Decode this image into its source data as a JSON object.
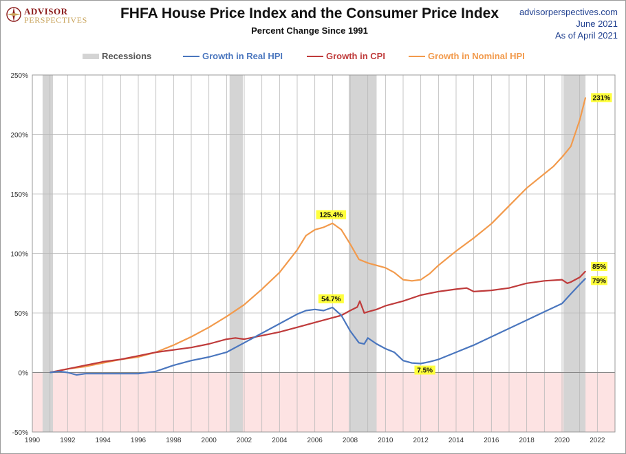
{
  "header": {
    "logo_top": "ADVISOR",
    "logo_bottom": "PERSPECTIVES",
    "title": "FHFA House Price Index and the Consumer Price Index",
    "subtitle": "Percent Change Since 1991",
    "source_site": "advisorperspectives.com",
    "source_date": "June 2021",
    "source_asof": "As of April 2021"
  },
  "legend": [
    {
      "label": "Recessions",
      "color": "#d4d4d4",
      "kind": "band"
    },
    {
      "label": "Growth in Real HPI",
      "color": "#4a76be",
      "kind": "line"
    },
    {
      "label": "Growth in CPI",
      "color": "#bf3b3b",
      "kind": "line"
    },
    {
      "label": "Growth in Nominal HPI",
      "color": "#f29a4c",
      "kind": "line"
    }
  ],
  "chart_data": {
    "type": "line",
    "title": "FHFA House Price Index and the Consumer Price Index",
    "subtitle": "Percent Change Since 1991",
    "xlim": [
      1990,
      2023
    ],
    "ylim": [
      -50,
      250
    ],
    "x_ticks": [
      "1990",
      "1992",
      "1994",
      "1996",
      "1998",
      "2000",
      "2002",
      "2004",
      "2006",
      "2008",
      "2010",
      "2012",
      "2014",
      "2016",
      "2018",
      "2020",
      "2022"
    ],
    "y_ticks": [
      "-50%",
      "0%",
      "50%",
      "100%",
      "150%",
      "200%",
      "250%"
    ],
    "grid": true,
    "negative_region_color": "#fde3e3",
    "recessions": [
      [
        1990.58,
        1991.17
      ],
      [
        2001.17,
        2001.92
      ],
      [
        2007.92,
        2009.5
      ],
      [
        2020.08,
        2021.33
      ]
    ],
    "series": [
      {
        "name": "Growth in Real HPI",
        "color": "#4a76be",
        "x": [
          1991.0,
          1991.5,
          1992.0,
          1992.5,
          1993.0,
          1994.0,
          1995.0,
          1996.0,
          1997.0,
          1998.0,
          1999.0,
          2000.0,
          2001.0,
          2002.0,
          2003.0,
          2004.0,
          2005.0,
          2005.5,
          2006.0,
          2006.5,
          2007.0,
          2007.5,
          2008.0,
          2008.5,
          2008.8,
          2009.0,
          2009.5,
          2010.0,
          2010.5,
          2011.0,
          2011.5,
          2012.0,
          2012.5,
          2013.0,
          2014.0,
          2015.0,
          2016.0,
          2017.0,
          2018.0,
          2019.0,
          2020.0,
          2020.5,
          2021.0,
          2021.33
        ],
        "values": [
          0,
          1,
          0,
          -2,
          -1,
          -1,
          -1,
          -1,
          1,
          6,
          10,
          13,
          17,
          25,
          33,
          41,
          49,
          52,
          53,
          52,
          54.7,
          48,
          35,
          25,
          24,
          29,
          24,
          20,
          17,
          10,
          8,
          7.5,
          9,
          11,
          17,
          23,
          30,
          37,
          44,
          51,
          58,
          66,
          74,
          79
        ]
      },
      {
        "name": "Growth in CPI",
        "color": "#bf3b3b",
        "x": [
          1991.0,
          1992.0,
          1993.0,
          1994.0,
          1995.0,
          1996.0,
          1997.0,
          1998.0,
          1999.0,
          2000.0,
          2001.0,
          2001.5,
          2002.0,
          2003.0,
          2004.0,
          2005.0,
          2006.0,
          2007.0,
          2007.5,
          2008.0,
          2008.4,
          2008.55,
          2008.8,
          2009.0,
          2009.5,
          2010.0,
          2011.0,
          2012.0,
          2013.0,
          2014.0,
          2014.6,
          2015.0,
          2016.0,
          2017.0,
          2018.0,
          2019.0,
          2020.0,
          2020.3,
          2020.5,
          2021.0,
          2021.33
        ],
        "values": [
          0,
          3,
          6,
          9,
          11,
          14,
          17,
          19,
          21,
          24,
          28,
          29,
          28,
          31,
          34,
          38,
          42,
          46,
          48,
          52,
          55,
          60,
          50,
          51,
          53,
          56,
          60,
          65,
          68,
          70,
          71,
          68,
          69,
          71,
          75,
          77,
          78,
          75,
          76,
          80,
          85
        ]
      },
      {
        "name": "Growth in Nominal HPI",
        "color": "#f29a4c",
        "x": [
          1991.0,
          1992.0,
          1993.0,
          1994.0,
          1995.0,
          1996.0,
          1997.0,
          1998.0,
          1999.0,
          2000.0,
          2001.0,
          2002.0,
          2003.0,
          2004.0,
          2005.0,
          2005.5,
          2006.0,
          2006.5,
          2007.0,
          2007.5,
          2008.0,
          2008.5,
          2009.0,
          2009.5,
          2010.0,
          2010.5,
          2011.0,
          2011.5,
          2012.0,
          2012.5,
          2013.0,
          2014.0,
          2015.0,
          2016.0,
          2017.0,
          2018.0,
          2019.0,
          2019.5,
          2020.0,
          2020.5,
          2021.0,
          2021.33
        ],
        "values": [
          0,
          3,
          5,
          8,
          11,
          13,
          17,
          23,
          30,
          38,
          47,
          57,
          70,
          84,
          103,
          115,
          120,
          122,
          125.4,
          120,
          108,
          95,
          92,
          90,
          88,
          84,
          78,
          77,
          78,
          83,
          90,
          102,
          113,
          125,
          140,
          155,
          167,
          173,
          181,
          190,
          212,
          231
        ]
      }
    ],
    "annotations": [
      {
        "text": "231%",
        "x": 2021.33,
        "y": 231,
        "align": "right"
      },
      {
        "text": "125.4%",
        "x": 2007.0,
        "y": 125.4,
        "align": "above"
      },
      {
        "text": "54.7%",
        "x": 2007.0,
        "y": 54.7,
        "align": "above"
      },
      {
        "text": "7.5%",
        "x": 2012.0,
        "y": 7.5,
        "align": "below"
      },
      {
        "text": "85%",
        "x": 2021.33,
        "y": 85,
        "align": "right"
      },
      {
        "text": "79%",
        "x": 2021.33,
        "y": 79,
        "align": "right"
      }
    ]
  }
}
